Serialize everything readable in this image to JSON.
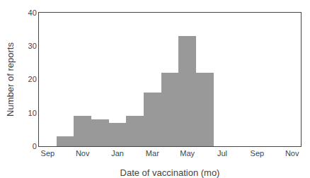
{
  "chart_data": {
    "type": "bar",
    "categories": [
      "Sep",
      null,
      "Nov",
      null,
      "Jan",
      null,
      "Mar",
      null,
      "May",
      null,
      "Jul",
      null,
      "Sep",
      null,
      "Nov"
    ],
    "values": [
      null,
      3,
      9,
      8,
      7,
      9,
      16,
      22,
      33,
      22,
      null,
      null,
      null,
      null,
      null
    ],
    "color": "#999999",
    "xlabel": "Date of vaccination (mo)",
    "ylabel": "Number of reports",
    "ylim": [
      0,
      40
    ],
    "yticks": [
      0,
      10,
      20,
      30,
      40
    ],
    "grid": false
  }
}
